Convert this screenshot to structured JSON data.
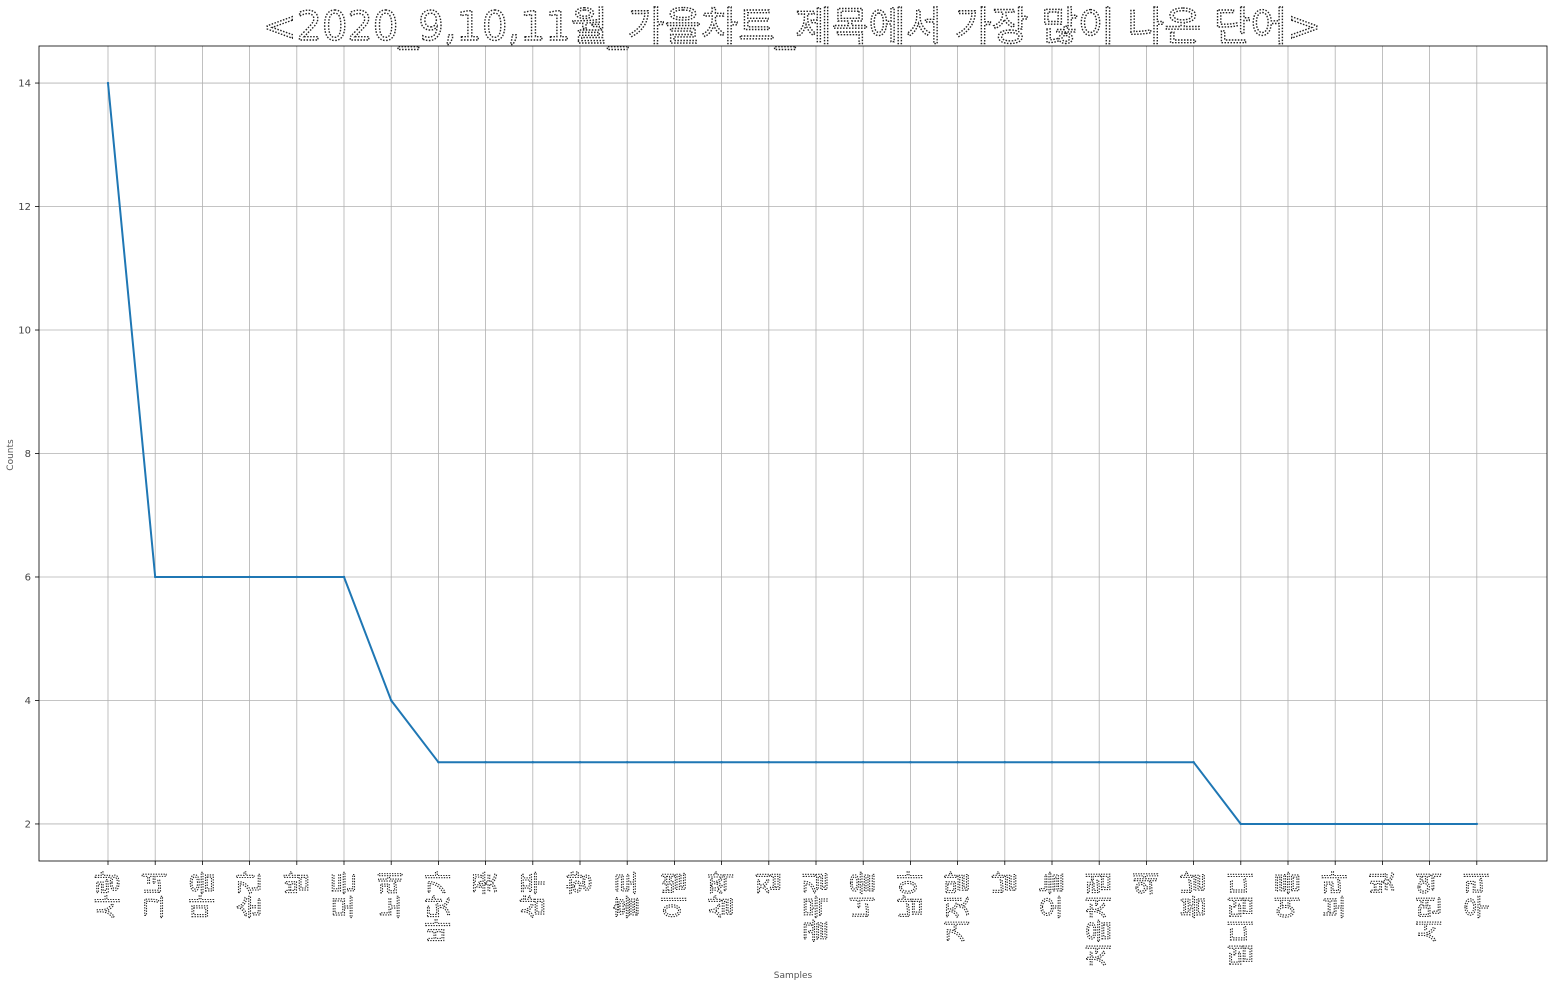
{
  "chart_data": {
    "type": "line",
    "title": "<2020_9,10,11월_가을차트_제목에서 가장 많이 나온 단어>",
    "xlabel": "Samples",
    "ylabel": "Counts",
    "categories": [
      "사랑",
      "그녀",
      "마음",
      "순간",
      "밤",
      "모든",
      "노래",
      "바닷가",
      "꽃",
      "샴푸",
      "향",
      "홀로",
      "이별",
      "살짝",
      "집",
      "골목길",
      "너울",
      "남아",
      "거짓말",
      "날",
      "오늘",
      "처음처럼",
      "왜",
      "봄날",
      "덤디덤디",
      "여름",
      "보라",
      "빛",
      "서면역",
      "우리"
    ],
    "values": [
      14,
      6,
      6,
      6,
      6,
      6,
      4,
      3,
      3,
      3,
      3,
      3,
      3,
      3,
      3,
      3,
      3,
      3,
      3,
      3,
      3,
      3,
      3,
      3,
      2,
      2,
      2,
      2,
      2,
      2
    ],
    "yticks": [
      2,
      4,
      6,
      8,
      10,
      12,
      14
    ],
    "ylim": [
      1.4,
      14.6
    ],
    "grid": true,
    "line_color": "#1f77b4"
  }
}
